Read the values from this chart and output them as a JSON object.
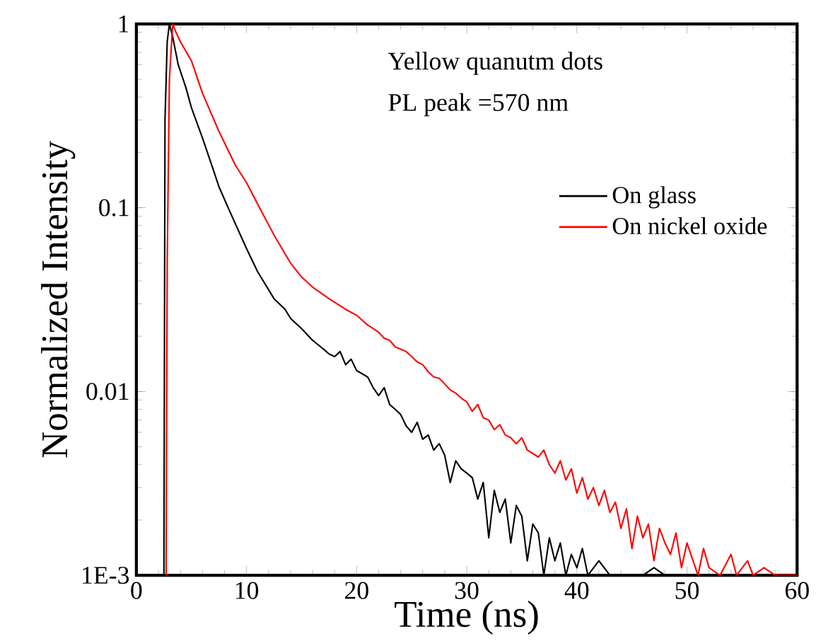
{
  "chart_data": {
    "type": "line",
    "xlabel": "Time (ns)",
    "ylabel": "Normalized Intensity",
    "log": "y",
    "legend": "right",
    "annotations": [
      "Yellow quanutm dots",
      "PL peak =570 nm"
    ],
    "xlim": [
      0,
      60
    ],
    "xticks": [
      0,
      10,
      20,
      30,
      40,
      50,
      60
    ],
    "ylim": [
      0.001,
      1
    ],
    "yticks": [
      {
        "value": 0.001,
        "label": "1E-3"
      },
      0.01,
      0.1,
      1
    ],
    "series": [
      {
        "name": "On glass",
        "color": "#000000",
        "x": [
          2.5,
          2.6,
          2.8,
          3.0,
          3.3,
          3.8,
          4.5,
          5,
          6,
          7,
          7.5,
          8.5,
          10,
          11,
          12.5,
          13.5,
          14,
          15,
          16,
          17,
          17.5,
          18,
          18.5,
          19,
          19.5,
          20,
          20.5,
          21,
          21.5,
          22,
          22.5,
          23,
          23.5,
          24,
          24.5,
          25,
          25.5,
          26,
          26.5,
          27,
          27.5,
          28,
          28.5,
          29,
          29.5,
          30,
          30.5,
          31,
          31.5,
          32,
          32.5,
          33,
          33.5,
          34,
          34.5,
          35,
          35.5,
          36,
          36.5,
          37,
          37.5,
          38,
          38.5,
          39,
          39.5,
          40,
          40.5,
          41,
          42,
          43,
          46,
          47,
          48,
          60
        ],
        "values": [
          0.001,
          0.3,
          0.8,
          1.0,
          0.85,
          0.6,
          0.45,
          0.35,
          0.24,
          0.16,
          0.13,
          0.095,
          0.06,
          0.045,
          0.032,
          0.028,
          0.025,
          0.022,
          0.019,
          0.017,
          0.016,
          0.0155,
          0.0165,
          0.014,
          0.015,
          0.013,
          0.0125,
          0.012,
          0.0105,
          0.0095,
          0.0105,
          0.0085,
          0.008,
          0.0075,
          0.0065,
          0.006,
          0.0068,
          0.0055,
          0.0058,
          0.0048,
          0.0052,
          0.0045,
          0.0032,
          0.0042,
          0.0038,
          0.0036,
          0.0034,
          0.0026,
          0.0032,
          0.0016,
          0.0029,
          0.0022,
          0.0026,
          0.0015,
          0.0024,
          0.0021,
          0.0012,
          0.0019,
          0.0017,
          0.001,
          0.0016,
          0.0012,
          0.0015,
          0.001,
          0.0013,
          0.0011,
          0.0014,
          0.001,
          0.0012,
          0.001,
          0.001,
          0.0011,
          0.001,
          0.001
        ]
      },
      {
        "name": "On nickel oxide",
        "color": "#ff0000",
        "x": [
          2.7,
          2.8,
          3.0,
          3.3,
          3.6,
          4,
          5,
          6,
          7.5,
          9,
          10,
          11,
          12.5,
          14,
          15,
          16,
          17.5,
          19,
          20,
          21,
          21.5,
          22,
          22.5,
          23,
          23.5,
          24,
          24.5,
          25,
          25.5,
          26,
          26.5,
          27,
          27.5,
          28,
          28.5,
          29,
          29.5,
          30,
          30.5,
          31,
          31.5,
          32,
          32.5,
          33,
          33.5,
          34,
          34.5,
          35,
          35.5,
          36,
          36.5,
          37,
          37.5,
          38,
          38.5,
          39,
          39.5,
          40,
          40.5,
          41,
          41.5,
          42,
          42.5,
          43,
          43.5,
          44,
          44.5,
          45,
          45.5,
          46,
          46.5,
          47,
          47.5,
          48,
          48.5,
          49,
          49.5,
          50,
          51,
          51.5,
          52,
          53,
          54,
          54.5,
          55.5,
          56,
          57,
          58,
          60
        ],
        "values": [
          0.001,
          0.05,
          0.5,
          1.0,
          0.9,
          0.8,
          0.63,
          0.42,
          0.26,
          0.17,
          0.137,
          0.105,
          0.071,
          0.05,
          0.042,
          0.037,
          0.032,
          0.028,
          0.026,
          0.023,
          0.022,
          0.021,
          0.0195,
          0.019,
          0.0175,
          0.017,
          0.0165,
          0.0155,
          0.0145,
          0.014,
          0.0128,
          0.012,
          0.0118,
          0.011,
          0.0102,
          0.0098,
          0.0092,
          0.0088,
          0.0078,
          0.0085,
          0.0072,
          0.007,
          0.0062,
          0.0066,
          0.0058,
          0.0056,
          0.0052,
          0.0056,
          0.0048,
          0.0046,
          0.0044,
          0.0048,
          0.004,
          0.0036,
          0.0042,
          0.0033,
          0.0038,
          0.0028,
          0.0034,
          0.0026,
          0.003,
          0.0024,
          0.0029,
          0.0022,
          0.0025,
          0.0018,
          0.0023,
          0.0014,
          0.0021,
          0.0016,
          0.0019,
          0.0012,
          0.0018,
          0.0015,
          0.0013,
          0.0017,
          0.0011,
          0.0015,
          0.001,
          0.0014,
          0.0011,
          0.001,
          0.0013,
          0.001,
          0.0012,
          0.001,
          0.0011,
          0.001,
          0.001
        ]
      }
    ]
  }
}
